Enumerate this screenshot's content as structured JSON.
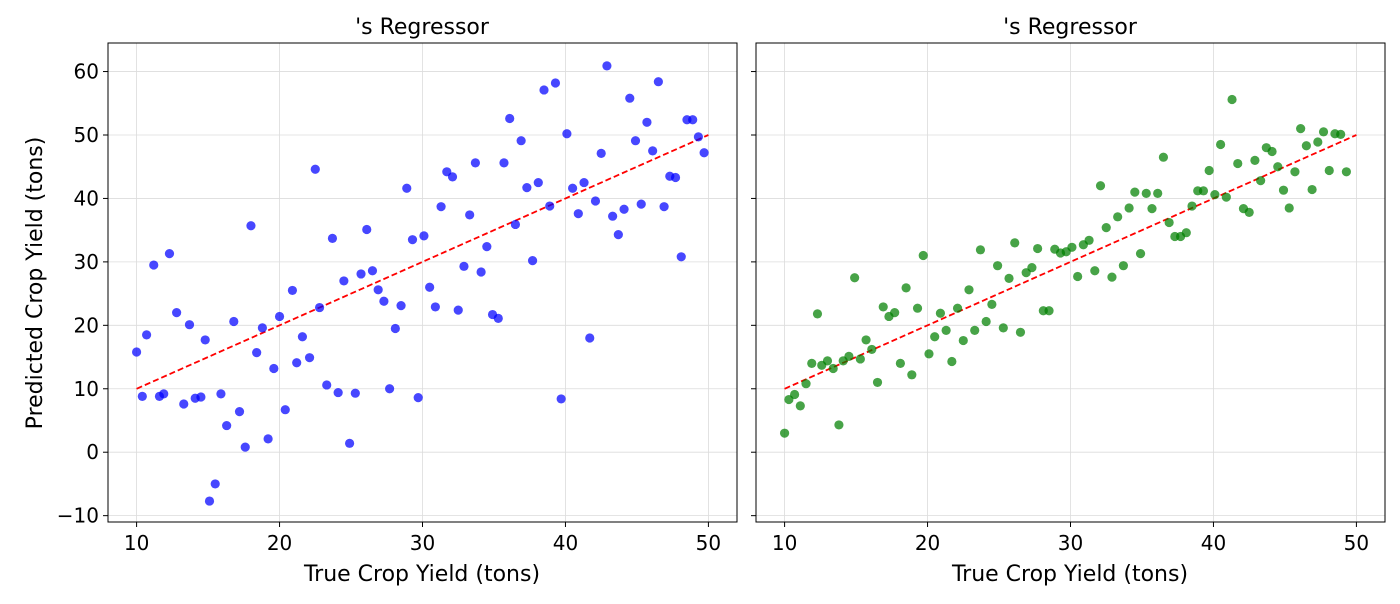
{
  "figure": {
    "ylabel": "Predicted Crop Yield (tons)"
  },
  "chart_data": [
    {
      "type": "scatter",
      "title": "'s Regressor",
      "xlabel": "True Crop Yield (tons)",
      "ylabel": "Predicted Crop Yield (tons)",
      "xlim": [
        8,
        52
      ],
      "ylim": [
        -11,
        64.5
      ],
      "x_ticks": [
        10,
        20,
        30,
        40,
        50
      ],
      "y_ticks": [
        -10,
        0,
        10,
        20,
        30,
        40,
        50,
        60
      ],
      "y_tick_labels": [
        "−10",
        "0",
        "10",
        "20",
        "30",
        "40",
        "50",
        "60"
      ],
      "grid": true,
      "point_color": "#0000ff",
      "reference_line": {
        "x": [
          10,
          50
        ],
        "y": [
          10,
          50
        ],
        "color": "#ff0000",
        "style": "dashed"
      },
      "points": [
        [
          10.0,
          15.8
        ],
        [
          10.4,
          8.8
        ],
        [
          10.7,
          18.5
        ],
        [
          11.2,
          29.5
        ],
        [
          11.6,
          8.8
        ],
        [
          11.9,
          9.2
        ],
        [
          12.3,
          31.3
        ],
        [
          12.8,
          22.0
        ],
        [
          13.3,
          7.6
        ],
        [
          13.7,
          20.1
        ],
        [
          14.1,
          8.5
        ],
        [
          14.5,
          8.7
        ],
        [
          14.8,
          17.7
        ],
        [
          15.1,
          -7.7
        ],
        [
          15.5,
          -5.0
        ],
        [
          15.9,
          9.2
        ],
        [
          16.3,
          4.2
        ],
        [
          16.8,
          20.6
        ],
        [
          17.2,
          6.4
        ],
        [
          17.6,
          0.8
        ],
        [
          18.0,
          35.7
        ],
        [
          18.4,
          15.7
        ],
        [
          18.8,
          19.6
        ],
        [
          19.2,
          2.1
        ],
        [
          19.6,
          13.2
        ],
        [
          20.0,
          21.4
        ],
        [
          20.4,
          6.7
        ],
        [
          20.9,
          25.5
        ],
        [
          21.2,
          14.1
        ],
        [
          21.6,
          18.2
        ],
        [
          22.1,
          14.9
        ],
        [
          22.5,
          44.6
        ],
        [
          22.8,
          22.8
        ],
        [
          23.3,
          10.6
        ],
        [
          23.7,
          33.7
        ],
        [
          24.1,
          9.4
        ],
        [
          24.5,
          27.0
        ],
        [
          24.9,
          1.4
        ],
        [
          25.3,
          9.3
        ],
        [
          25.7,
          28.1
        ],
        [
          26.1,
          35.1
        ],
        [
          26.5,
          28.6
        ],
        [
          26.9,
          25.6
        ],
        [
          27.3,
          23.8
        ],
        [
          27.7,
          10.0
        ],
        [
          28.1,
          19.5
        ],
        [
          28.5,
          23.1
        ],
        [
          28.9,
          41.6
        ],
        [
          29.3,
          33.5
        ],
        [
          29.7,
          8.6
        ],
        [
          30.1,
          34.1
        ],
        [
          30.5,
          26.0
        ],
        [
          30.9,
          22.9
        ],
        [
          31.3,
          38.7
        ],
        [
          31.7,
          44.2
        ],
        [
          32.1,
          43.4
        ],
        [
          32.5,
          22.4
        ],
        [
          32.9,
          29.3
        ],
        [
          33.3,
          37.4
        ],
        [
          33.7,
          45.6
        ],
        [
          34.1,
          28.4
        ],
        [
          34.5,
          32.4
        ],
        [
          34.9,
          21.7
        ],
        [
          35.3,
          21.1
        ],
        [
          35.7,
          45.6
        ],
        [
          36.1,
          52.6
        ],
        [
          36.5,
          35.9
        ],
        [
          36.9,
          49.1
        ],
        [
          37.3,
          41.7
        ],
        [
          37.7,
          30.2
        ],
        [
          38.1,
          42.5
        ],
        [
          38.5,
          57.1
        ],
        [
          38.9,
          38.8
        ],
        [
          39.3,
          58.2
        ],
        [
          39.7,
          8.4
        ],
        [
          40.1,
          50.2
        ],
        [
          40.5,
          41.6
        ],
        [
          40.9,
          37.6
        ],
        [
          41.3,
          42.5
        ],
        [
          41.7,
          18.0
        ],
        [
          42.1,
          39.6
        ],
        [
          42.5,
          47.1
        ],
        [
          42.9,
          60.9
        ],
        [
          43.3,
          37.2
        ],
        [
          43.7,
          34.3
        ],
        [
          44.1,
          38.3
        ],
        [
          44.5,
          55.8
        ],
        [
          44.9,
          49.1
        ],
        [
          45.3,
          39.1
        ],
        [
          45.7,
          52.0
        ],
        [
          46.1,
          47.5
        ],
        [
          46.5,
          58.4
        ],
        [
          46.9,
          38.7
        ],
        [
          47.3,
          43.5
        ],
        [
          47.7,
          43.3
        ],
        [
          48.1,
          30.8
        ],
        [
          48.5,
          52.4
        ],
        [
          48.9,
          52.4
        ],
        [
          49.3,
          49.7
        ],
        [
          49.7,
          47.2
        ]
      ]
    },
    {
      "type": "scatter",
      "title": "'s Regressor",
      "xlabel": "True Crop Yield (tons)",
      "xlim": [
        8,
        52
      ],
      "ylim": [
        -11,
        64.5
      ],
      "x_ticks": [
        10,
        20,
        30,
        40,
        50
      ],
      "grid": true,
      "point_color": "#008000",
      "reference_line": {
        "x": [
          10,
          50
        ],
        "y": [
          10,
          50
        ],
        "color": "#ff0000",
        "style": "dashed"
      },
      "points": [
        [
          10.0,
          3.0
        ],
        [
          10.3,
          8.3
        ],
        [
          10.7,
          9.1
        ],
        [
          11.1,
          7.3
        ],
        [
          11.5,
          10.8
        ],
        [
          11.9,
          14.0
        ],
        [
          12.3,
          21.8
        ],
        [
          12.6,
          13.7
        ],
        [
          13.0,
          14.4
        ],
        [
          13.4,
          13.2
        ],
        [
          13.8,
          4.3
        ],
        [
          14.1,
          14.4
        ],
        [
          14.5,
          15.1
        ],
        [
          14.9,
          27.5
        ],
        [
          15.3,
          14.7
        ],
        [
          15.7,
          17.7
        ],
        [
          16.1,
          16.2
        ],
        [
          16.5,
          11.0
        ],
        [
          16.9,
          22.9
        ],
        [
          17.3,
          21.4
        ],
        [
          17.7,
          22.0
        ],
        [
          18.1,
          14.0
        ],
        [
          18.5,
          25.9
        ],
        [
          18.9,
          12.2
        ],
        [
          19.3,
          22.7
        ],
        [
          19.7,
          31.0
        ],
        [
          20.1,
          15.5
        ],
        [
          20.5,
          18.2
        ],
        [
          20.9,
          21.9
        ],
        [
          21.3,
          19.2
        ],
        [
          21.7,
          14.3
        ],
        [
          22.1,
          22.7
        ],
        [
          22.5,
          17.6
        ],
        [
          22.9,
          25.6
        ],
        [
          23.3,
          19.2
        ],
        [
          23.7,
          31.9
        ],
        [
          24.1,
          20.6
        ],
        [
          24.5,
          23.3
        ],
        [
          24.9,
          29.4
        ],
        [
          25.3,
          19.6
        ],
        [
          25.7,
          27.4
        ],
        [
          26.1,
          33.0
        ],
        [
          26.5,
          18.9
        ],
        [
          26.9,
          28.3
        ],
        [
          27.3,
          29.1
        ],
        [
          27.7,
          32.1
        ],
        [
          28.1,
          22.3
        ],
        [
          28.5,
          22.3
        ],
        [
          28.9,
          32.0
        ],
        [
          29.3,
          31.4
        ],
        [
          29.7,
          31.6
        ],
        [
          30.1,
          32.3
        ],
        [
          30.5,
          27.7
        ],
        [
          30.9,
          32.7
        ],
        [
          31.3,
          33.4
        ],
        [
          31.7,
          28.6
        ],
        [
          32.1,
          42.0
        ],
        [
          32.5,
          35.4
        ],
        [
          32.9,
          27.6
        ],
        [
          33.3,
          37.1
        ],
        [
          33.7,
          29.4
        ],
        [
          34.1,
          38.5
        ],
        [
          34.5,
          41.0
        ],
        [
          34.9,
          31.3
        ],
        [
          35.3,
          40.8
        ],
        [
          35.7,
          38.4
        ],
        [
          36.1,
          40.8
        ],
        [
          36.5,
          46.5
        ],
        [
          36.9,
          36.2
        ],
        [
          37.3,
          34.0
        ],
        [
          37.7,
          34.0
        ],
        [
          38.1,
          34.6
        ],
        [
          38.5,
          38.8
        ],
        [
          38.9,
          41.2
        ],
        [
          39.3,
          41.2
        ],
        [
          39.7,
          44.4
        ],
        [
          40.1,
          40.6
        ],
        [
          40.5,
          48.5
        ],
        [
          40.9,
          40.2
        ],
        [
          41.3,
          55.6
        ],
        [
          41.7,
          45.5
        ],
        [
          42.1,
          38.4
        ],
        [
          42.5,
          37.8
        ],
        [
          42.9,
          46.0
        ],
        [
          43.3,
          42.8
        ],
        [
          43.7,
          48.0
        ],
        [
          44.1,
          47.4
        ],
        [
          44.5,
          45.0
        ],
        [
          44.9,
          41.3
        ],
        [
          45.3,
          38.5
        ],
        [
          45.7,
          44.2
        ],
        [
          46.1,
          51.0
        ],
        [
          46.5,
          48.3
        ],
        [
          46.9,
          41.4
        ],
        [
          47.3,
          48.9
        ],
        [
          47.7,
          50.5
        ],
        [
          48.1,
          44.4
        ],
        [
          48.5,
          50.2
        ],
        [
          48.9,
          50.1
        ],
        [
          49.3,
          44.2
        ]
      ]
    }
  ]
}
